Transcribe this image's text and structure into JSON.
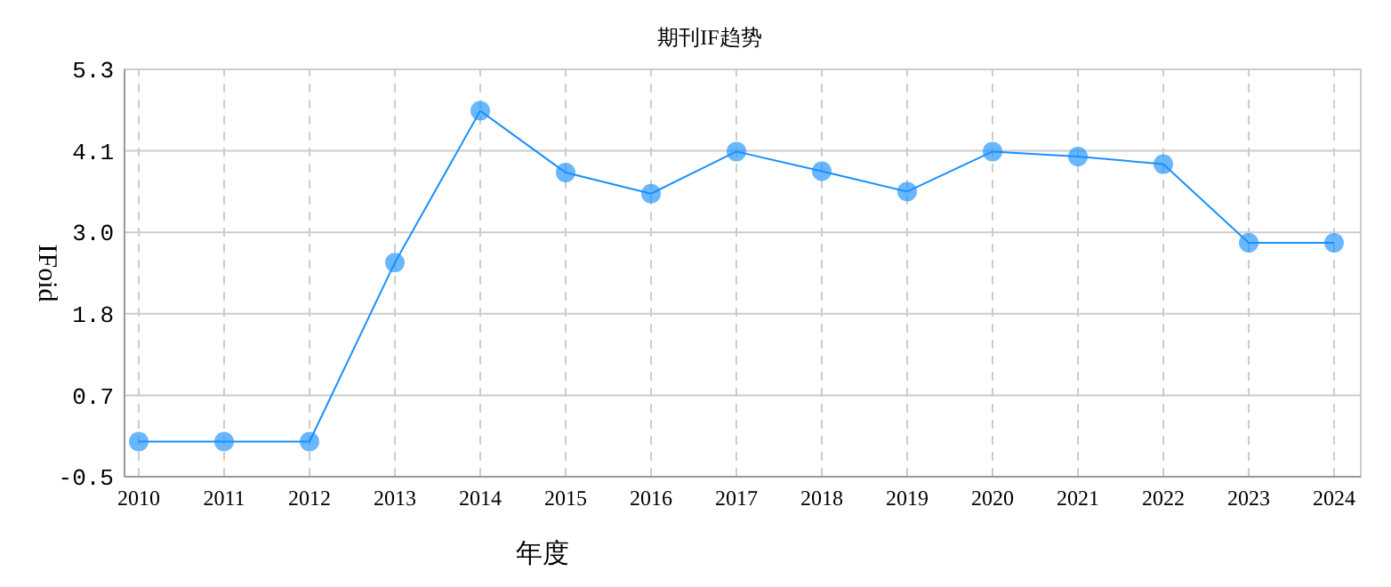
{
  "chart_data": {
    "type": "line",
    "title": "期刊IF趋势",
    "xlabel": "年度",
    "ylabel": "IFoid",
    "categories": [
      "2010",
      "2011",
      "2012",
      "2013",
      "2014",
      "2015",
      "2016",
      "2017",
      "2018",
      "2019",
      "2020",
      "2021",
      "2022",
      "2023",
      "2024"
    ],
    "series": [
      {
        "color": "#1890ff",
        "values": [
          0,
          0,
          0,
          2.55,
          4.71,
          3.83,
          3.53,
          4.13,
          3.85,
          3.56,
          4.13,
          4.06,
          3.95,
          2.83,
          2.83
        ]
      }
    ],
    "ylim": [
      -0.5,
      5.3
    ],
    "yticks": [
      -0.5,
      {
        "value": 0.66,
        "label": "0.7"
      },
      {
        "value": 1.82,
        "label": "1.8"
      },
      {
        "value": 2.98,
        "label": "3.0"
      },
      {
        "value": 4.14,
        "label": "4.1"
      },
      5.3
    ],
    "grid": true,
    "marker": "circle",
    "line_style": "solid"
  }
}
